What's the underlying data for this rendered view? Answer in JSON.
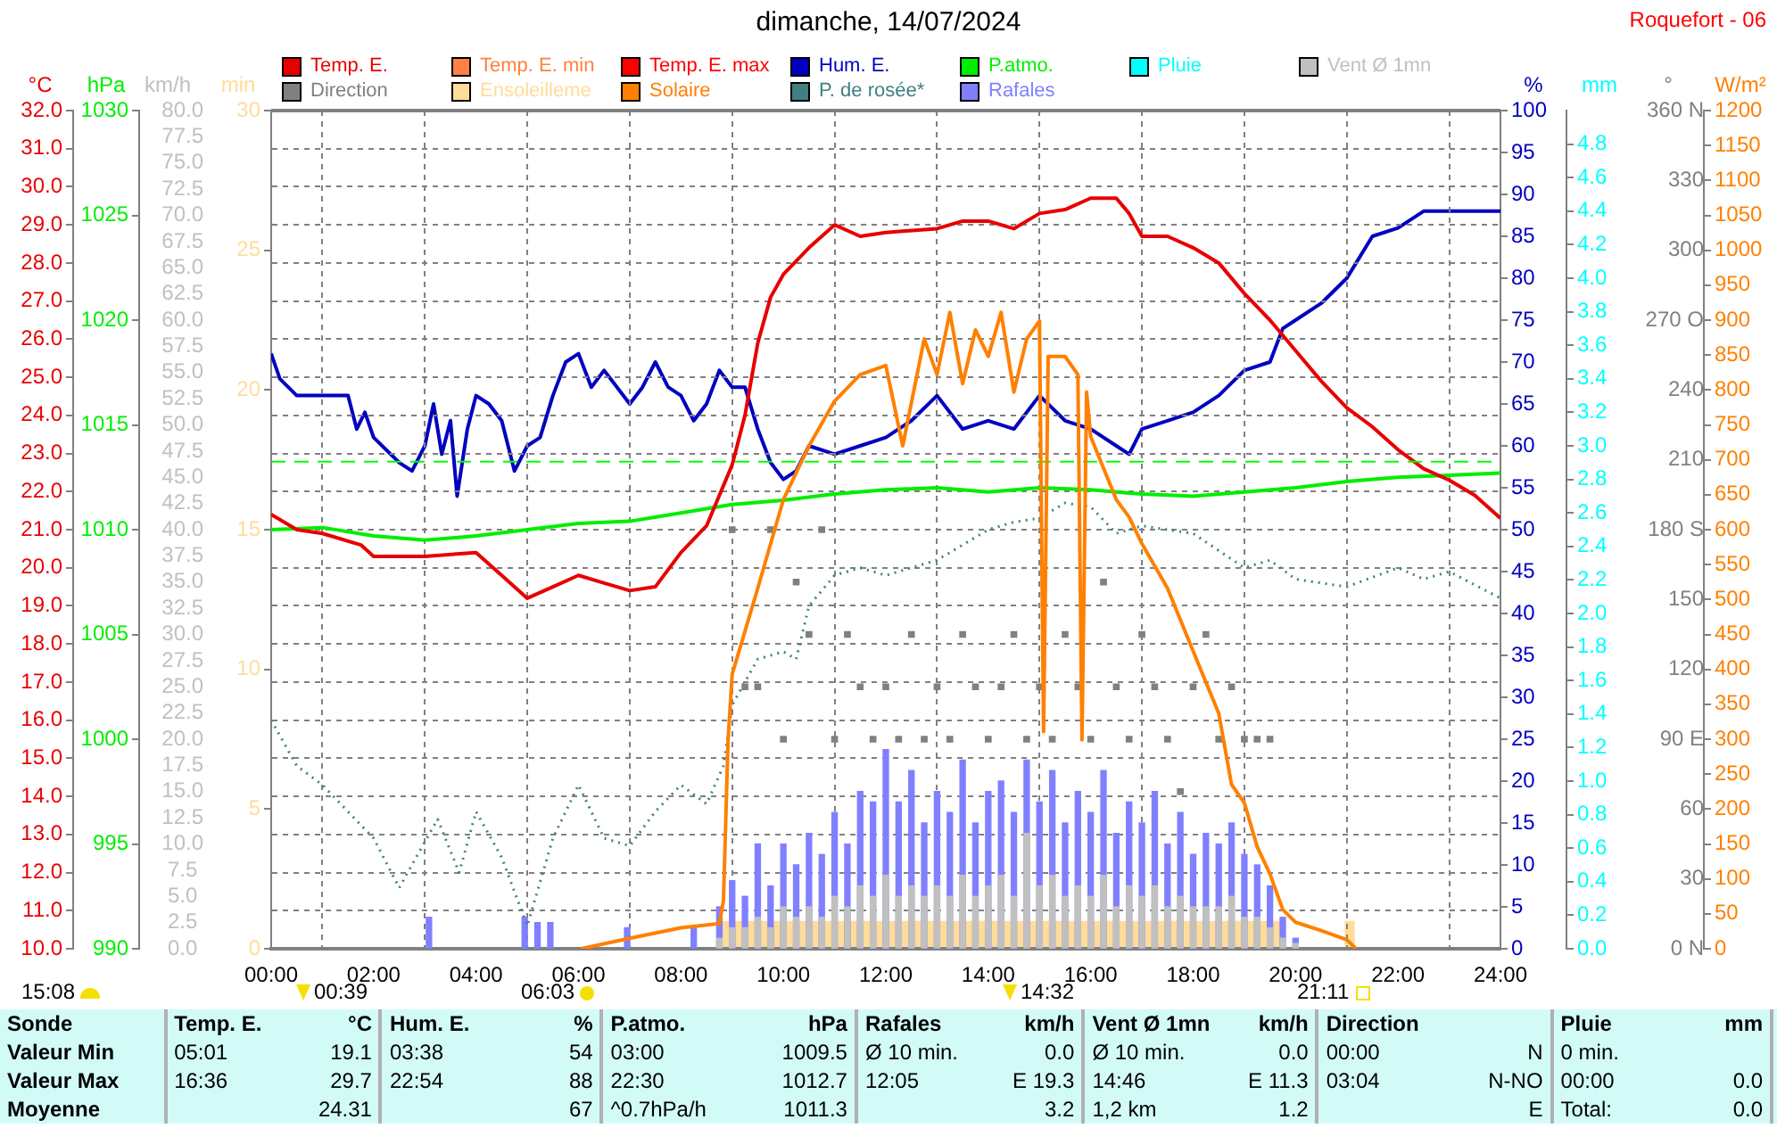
{
  "chart_data": [
    {
      "type": "line",
      "title": "dimanche, 14/07/2024",
      "legend": "top",
      "grid": true,
      "xlim": [
        0,
        24
      ],
      "xticks": [
        {
          "value": 0,
          "label": "00:00"
        },
        {
          "value": 2,
          "label": "02:00"
        },
        {
          "value": 4,
          "label": "04:00"
        },
        {
          "value": 6,
          "label": "06:00"
        },
        {
          "value": 8,
          "label": "08:00"
        },
        {
          "value": 10,
          "label": "10:00"
        },
        {
          "value": 12,
          "label": "12:00"
        },
        {
          "value": 14,
          "label": "14:00"
        },
        {
          "value": 16,
          "label": "16:00"
        },
        {
          "value": 18,
          "label": "18:00"
        },
        {
          "value": 20,
          "label": "20:00"
        },
        {
          "value": 22,
          "label": "22:00"
        },
        {
          "value": 24,
          "label": "24:00"
        }
      ],
      "ylabel": "°C",
      "ylim": [
        10,
        32
      ],
      "yticks": [
        {
          "value": 10,
          "label": "10.0"
        },
        {
          "value": 11,
          "label": "11.0"
        },
        {
          "value": 12,
          "label": "12.0"
        },
        {
          "value": 13,
          "label": "13.0"
        },
        {
          "value": 14,
          "label": "14.0"
        },
        {
          "value": 15,
          "label": "15.0"
        },
        {
          "value": 16,
          "label": "16.0"
        },
        {
          "value": 17,
          "label": "17.0"
        },
        {
          "value": 18,
          "label": "18.0"
        },
        {
          "value": 19,
          "label": "19.0"
        },
        {
          "value": 20,
          "label": "20.0"
        },
        {
          "value": 21,
          "label": "21.0"
        },
        {
          "value": 22,
          "label": "22.0"
        },
        {
          "value": 23,
          "label": "23.0"
        },
        {
          "value": 24,
          "label": "24.0"
        },
        {
          "value": 25,
          "label": "25.0"
        },
        {
          "value": 26,
          "label": "26.0"
        },
        {
          "value": 27,
          "label": "27.0"
        },
        {
          "value": 28,
          "label": "28.0"
        },
        {
          "value": 29,
          "label": "29.0"
        },
        {
          "value": 30,
          "label": "30.0"
        },
        {
          "value": 31,
          "label": "31.0"
        },
        {
          "value": 32,
          "label": "32.0"
        }
      ],
      "y2label": "hPa",
      "y2lim": [
        990,
        1030
      ],
      "y2ticks": [
        990,
        995,
        1000,
        1005,
        1010,
        1015,
        1020,
        1025,
        1030
      ],
      "y3label": "km/h",
      "y3lim": [
        0,
        80
      ],
      "y3ticks": [
        {
          "value": 0,
          "label": "0.0"
        },
        {
          "value": 2.5,
          "label": "2.5"
        },
        {
          "value": 5,
          "label": "5.0"
        },
        {
          "value": 7.5,
          "label": "7.5"
        },
        {
          "value": 10,
          "label": "10.0"
        },
        {
          "value": 12.5,
          "label": "12.5"
        },
        {
          "value": 15,
          "label": "15.0"
        },
        {
          "value": 17.5,
          "label": "17.5"
        },
        {
          "value": 20,
          "label": "20.0"
        },
        {
          "value": 22.5,
          "label": "22.5"
        },
        {
          "value": 25,
          "label": "25.0"
        },
        {
          "value": 27.5,
          "label": "27.5"
        },
        {
          "value": 30,
          "label": "30.0"
        },
        {
          "value": 32.5,
          "label": "32.5"
        },
        {
          "value": 35,
          "label": "35.0"
        },
        {
          "value": 37.5,
          "label": "37.5"
        },
        {
          "value": 40,
          "label": "40.0"
        },
        {
          "value": 42.5,
          "label": "42.5"
        },
        {
          "value": 45,
          "label": "45.0"
        },
        {
          "value": 47.5,
          "label": "47.5"
        },
        {
          "value": 50,
          "label": "50.0"
        },
        {
          "value": 52.5,
          "label": "52.5"
        },
        {
          "value": 55,
          "label": "55.0"
        },
        {
          "value": 57.5,
          "label": "57.5"
        },
        {
          "value": 60,
          "label": "60.0"
        },
        {
          "value": 62.5,
          "label": "62.5"
        },
        {
          "value": 65,
          "label": "65.0"
        },
        {
          "value": 67.5,
          "label": "67.5"
        },
        {
          "value": 70,
          "label": "70.0"
        },
        {
          "value": 72.5,
          "label": "72.5"
        },
        {
          "value": 75,
          "label": "75.0"
        },
        {
          "value": 77.5,
          "label": "77.5"
        },
        {
          "value": 80,
          "label": "80.0"
        }
      ],
      "ref_lines": [
        {
          "axis": "y2",
          "value": 1013.25,
          "color": "#00ff00",
          "line_style": "dashed"
        }
      ],
      "series": [
        {
          "name": "Temp. E.",
          "color": "#e80000",
          "x": [
            0,
            0.5,
            1,
            1.75,
            2,
            3,
            4,
            4.5,
            5,
            5.5,
            6,
            6.5,
            7,
            7.5,
            8,
            8.5,
            9,
            9.25,
            9.5,
            9.75,
            10,
            10.5,
            11,
            11.5,
            12,
            13,
            13.5,
            14,
            14.5,
            15,
            15.5,
            16,
            16.5,
            16.75,
            17,
            17.5,
            18,
            18.5,
            19,
            19.5,
            20,
            20.5,
            21,
            21.5,
            22,
            22.5,
            23,
            23.5,
            24
          ],
          "values": [
            21.4,
            21.0,
            20.9,
            20.6,
            20.3,
            20.3,
            20.4,
            19.8,
            19.2,
            19.5,
            19.8,
            19.6,
            19.4,
            19.5,
            20.4,
            21.1,
            22.7,
            24.0,
            25.9,
            27.1,
            27.7,
            28.4,
            29.0,
            28.7,
            28.8,
            28.9,
            29.1,
            29.1,
            28.9,
            29.3,
            29.4,
            29.7,
            29.7,
            29.3,
            28.7,
            28.7,
            28.4,
            28.0,
            27.2,
            26.5,
            25.7,
            24.9,
            24.2,
            23.7,
            23.1,
            22.6,
            22.3,
            21.9,
            21.3
          ]
        },
        {
          "name": "Temp. E. min",
          "color": "#ff8040"
        },
        {
          "name": "Temp. E. max",
          "color": "#ff0000"
        },
        {
          "name": "P.atmo.",
          "color": "#00ee00",
          "axis": "y2",
          "x": [
            0,
            1,
            2,
            3,
            4,
            5,
            6,
            7,
            8,
            9,
            10,
            11,
            12,
            13,
            14,
            15,
            16,
            17,
            18,
            19,
            20,
            21,
            22,
            23,
            24
          ],
          "values": [
            1010.0,
            1010.1,
            1009.7,
            1009.5,
            1009.7,
            1010.0,
            1010.3,
            1010.4,
            1010.8,
            1011.2,
            1011.4,
            1011.7,
            1011.9,
            1012.0,
            1011.8,
            1012.0,
            1011.9,
            1011.7,
            1011.6,
            1011.8,
            1012.0,
            1012.3,
            1012.5,
            1012.6,
            1012.7
          ]
        },
        {
          "name": "Vent Ø 1mn",
          "color": "#c0c0c0",
          "type": "bar",
          "axis": "y3",
          "x": [
            8.75,
            9,
            9.25,
            9.5,
            9.75,
            10,
            10.25,
            10.5,
            10.75,
            11,
            11.25,
            11.5,
            11.75,
            12,
            12.25,
            12.5,
            12.75,
            13,
            13.25,
            13.5,
            13.75,
            14,
            14.25,
            14.5,
            14.75,
            15,
            15.25,
            15.5,
            15.75,
            16,
            16.25,
            16.5,
            16.75,
            17,
            17.25,
            17.5,
            17.75,
            18,
            18.25,
            18.5,
            18.75,
            19,
            19.25,
            19.5,
            19.75,
            20
          ],
          "values": [
            1,
            2,
            2,
            3,
            2,
            4,
            3,
            4,
            3,
            5,
            4,
            6,
            5,
            7,
            5,
            6,
            5,
            6,
            5,
            7,
            5,
            6,
            7,
            5,
            11,
            6,
            7,
            5,
            6,
            5,
            7,
            4,
            6,
            5,
            6,
            4,
            5,
            4,
            4,
            4,
            5,
            3,
            3,
            2,
            1,
            0.5
          ]
        },
        {
          "name": "P. de rosée*",
          "color": "#408080",
          "line_style": "dotted",
          "x": [
            0,
            0.5,
            1,
            1.5,
            2,
            2.5,
            2.83,
            3.25,
            3.67,
            4,
            4.5,
            5,
            5.5,
            6,
            6.5,
            7,
            7.5,
            8,
            8.5,
            8.83,
            9,
            9.5,
            10,
            10.25,
            10.5,
            11,
            11.5,
            12,
            13,
            14,
            14.5,
            15,
            15.5,
            16,
            16.5,
            17,
            18,
            19,
            19.5,
            20,
            21,
            22,
            22.5,
            23,
            24
          ],
          "values": [
            16.0,
            14.8,
            14.3,
            13.6,
            12.9,
            11.6,
            12.4,
            13.4,
            12.0,
            13.6,
            12.4,
            10.6,
            12.9,
            14.3,
            12.9,
            12.7,
            13.6,
            14.3,
            13.8,
            14.8,
            16.4,
            17.6,
            17.8,
            17.6,
            19.0,
            19.8,
            20.0,
            19.8,
            20.2,
            21.0,
            21.2,
            21.3,
            21.7,
            21.6,
            20.9,
            21.1,
            20.9,
            20.0,
            20.2,
            19.7,
            19.5,
            20.0,
            19.7,
            19.9,
            19.2
          ]
        },
        {
          "name": "Rafales",
          "color": "#8080ff",
          "type": "bar",
          "axis": "y3",
          "x": [
            3.08,
            4.95,
            5.2,
            5.45,
            6.95,
            8.25,
            8.75,
            9,
            9.25,
            9.5,
            9.75,
            10,
            10.25,
            10.5,
            10.75,
            11,
            11.25,
            11.5,
            11.75,
            12,
            12.25,
            12.5,
            12.75,
            13,
            13.25,
            13.5,
            13.75,
            14,
            14.25,
            14.5,
            14.75,
            15,
            15.25,
            15.5,
            15.75,
            16,
            16.25,
            16.5,
            16.75,
            17,
            17.25,
            17.5,
            17.75,
            18,
            18.25,
            18.5,
            18.75,
            19,
            19.25,
            19.5,
            19.75,
            20
          ],
          "values": [
            3,
            3,
            2.5,
            2.5,
            2,
            2,
            4,
            6.5,
            5,
            10,
            6,
            10,
            8,
            11,
            9,
            13,
            10,
            15,
            14,
            19,
            14,
            17,
            12,
            15,
            13,
            18,
            12,
            15,
            16,
            13,
            18,
            14,
            17,
            12,
            15,
            13,
            17,
            11,
            14,
            12,
            15,
            10,
            13,
            9,
            11,
            10,
            12,
            9,
            8,
            6,
            3,
            1
          ]
        }
      ],
      "annotations": [
        "Roquefort - 06",
        "15:08",
        "00:39",
        "06:03",
        "14:32",
        "21:11",
        "Sonde\tTemp. E.\t°C\tHum. E.\t%\tP.atmo.\thPa\tRafales\tkm/h\tVent Ø 1mn\tkm/h\tDirection\t\tPluie\tmm",
        "Valeur Min\t05:01\t19.1\t03:38\t54\t03:00\t1009.5\tØ 10 min.\t0.0\tØ 10 min.\t0.0\t00:00\tN\t0 min.\t",
        "Valeur Max\t16:36\t29.7\t22:54\t88\t22:30\t1012.7\t12:05\tE 19.3\t14:46\tE 11.3\t03:04\tN-NO\t00:00\t0.0",
        "Moyenne\t\t24.31\t\t67\t^0.7hPa/h\t1011.3\t\t3.2\t1,2 km\t1.2\t\tE\tTotal:\t0.0"
      ]
    },
    {
      "type": "line",
      "legend": "top",
      "tick_labels": "y",
      "xlim": [
        0,
        24
      ],
      "ylabel": "min",
      "ylim": [
        0,
        30
      ],
      "yticks": [
        0,
        5,
        10,
        15,
        20,
        25,
        30
      ],
      "y2label": "%",
      "y2lim": [
        0,
        100
      ],
      "y2ticks": [
        0,
        5,
        10,
        15,
        20,
        25,
        30,
        35,
        40,
        45,
        50,
        55,
        60,
        65,
        70,
        75,
        80,
        85,
        90,
        95,
        100
      ],
      "y3label": "mm",
      "y3lim": [
        0,
        5
      ],
      "y3ticks": [
        {
          "value": 0,
          "label": "0.0"
        },
        0.2,
        0.4,
        0.6,
        0.8,
        {
          "value": 1,
          "label": "1.0"
        },
        1.2,
        1.4,
        1.6,
        1.8,
        {
          "value": 2,
          "label": "2.0"
        },
        2.2,
        2.4,
        2.6,
        2.8,
        {
          "value": 3,
          "label": "3.0"
        },
        3.2,
        3.4,
        3.6,
        3.8,
        {
          "value": 4,
          "label": "4.0"
        },
        4.2,
        4.4,
        4.6,
        4.8
      ],
      "series": [
        {
          "name": "Hum. E.",
          "color": "#0000c0",
          "axis": "y2",
          "x": [
            0,
            0.17,
            0.5,
            1,
            1.5,
            1.67,
            1.83,
            2,
            2.5,
            2.75,
            3,
            3.17,
            3.33,
            3.5,
            3.63,
            3.83,
            4,
            4.25,
            4.5,
            4.75,
            5,
            5.25,
            5.5,
            5.75,
            6,
            6.25,
            6.5,
            7,
            7.25,
            7.5,
            7.75,
            8,
            8.25,
            8.5,
            8.75,
            9,
            9.25,
            9.5,
            9.75,
            10,
            10.25,
            10.5,
            11,
            11.5,
            12,
            12.5,
            13,
            13.5,
            14,
            14.5,
            15,
            15.5,
            16,
            16.5,
            16.75,
            17,
            17.5,
            18,
            18.5,
            19,
            19.5,
            19.75,
            20,
            20.5,
            21,
            21.5,
            22,
            22.5,
            23,
            24
          ],
          "values": [
            71,
            68,
            66,
            66,
            66,
            62,
            64,
            61,
            58,
            57,
            60,
            65,
            59,
            63,
            54,
            62,
            66,
            65,
            63,
            57,
            60,
            61,
            66,
            70,
            71,
            67,
            69,
            65,
            67,
            70,
            67,
            66,
            63,
            65,
            69,
            67,
            67,
            62,
            58,
            56,
            57,
            60,
            59,
            60,
            61,
            63,
            66,
            62,
            63,
            62,
            66,
            63,
            62,
            60,
            59,
            62,
            63,
            64,
            66,
            69,
            70,
            74,
            75,
            77,
            80,
            85,
            86,
            88,
            88,
            88
          ]
        },
        {
          "name": "Pluie",
          "color": "#00ffff",
          "axis": "y3"
        },
        {
          "name": "Ensoleilleme",
          "color": "#ffdc9a",
          "type": "area",
          "x": [
            8.75,
            8.76,
            19.8,
            19.81,
            20.95,
            20.96,
            21.15,
            21.16
          ],
          "values": [
            0,
            1,
            1,
            0,
            0,
            1,
            1,
            0
          ]
        }
      ]
    },
    {
      "type": "line",
      "legend": "top",
      "tick_labels": "y",
      "xlim": [
        0,
        24
      ],
      "ylabel": "°",
      "ylim": [
        0,
        360
      ],
      "yticks": [
        {
          "value": 0,
          "label": "0 N"
        },
        30,
        60,
        {
          "value": 90,
          "label": "90 E"
        },
        120,
        150,
        {
          "value": 180,
          "label": "180 S"
        },
        210,
        240,
        {
          "value": 270,
          "label": "270 O"
        },
        300,
        330,
        {
          "value": 360,
          "label": "360 N"
        }
      ],
      "y2label": "W/m²",
      "y2lim": [
        0,
        1200
      ],
      "y2ticks": [
        0,
        50,
        100,
        150,
        200,
        250,
        300,
        350,
        400,
        450,
        500,
        550,
        600,
        650,
        700,
        750,
        800,
        850,
        900,
        950,
        1000,
        1050,
        1100,
        1150,
        1200
      ],
      "series": [
        {
          "name": "Direction",
          "color": "#808080",
          "type": "scatter",
          "marker": "square",
          "x": [
            9,
            9.25,
            9.5,
            9.75,
            10,
            10.25,
            10.5,
            10.75,
            11,
            11.25,
            11.5,
            11.75,
            12,
            12.25,
            12.5,
            12.75,
            13,
            13.25,
            13.5,
            13.75,
            14,
            14.25,
            14.5,
            14.75,
            15,
            15.25,
            15.5,
            15.75,
            16,
            16.25,
            16.5,
            16.75,
            17,
            17.25,
            17.5,
            17.75,
            18,
            18.25,
            18.5,
            18.75,
            19,
            19.25,
            19.5
          ],
          "values": [
            180,
            112.5,
            112.5,
            180,
            90,
            157.5,
            135,
            180,
            90,
            135,
            112.5,
            90,
            112.5,
            90,
            135,
            90,
            112.5,
            90,
            135,
            112.5,
            90,
            112.5,
            135,
            90,
            112.5,
            90,
            135,
            112.5,
            90,
            157.5,
            112.5,
            90,
            135,
            112.5,
            90,
            67.5,
            112.5,
            135,
            90,
            112.5,
            90,
            90,
            90
          ]
        },
        {
          "name": "Solaire",
          "color": "#ff8000",
          "axis": "y2",
          "x": [
            6.05,
            7,
            8,
            8.75,
            8.83,
            8.92,
            9,
            9.5,
            10,
            10.5,
            11,
            11.5,
            12,
            12.33,
            12.75,
            13,
            13.25,
            13.5,
            13.75,
            14,
            14.25,
            14.5,
            14.75,
            15,
            15.08,
            15.17,
            15.5,
            15.75,
            15.83,
            15.92,
            16,
            16.5,
            16.75,
            17,
            17.5,
            18,
            18.5,
            18.75,
            19,
            19.25,
            19.5,
            19.75,
            20,
            20.5,
            21,
            21.18
          ],
          "values": [
            0,
            15,
            30,
            36,
            69,
            299,
            393,
            516,
            643,
            720,
            784,
            822,
            835,
            720,
            873,
            822,
            911,
            809,
            886,
            848,
            911,
            797,
            873,
            899,
            311,
            848,
            848,
            822,
            299,
            797,
            733,
            643,
            618,
            580,
            516,
            426,
            337,
            235,
            209,
            146,
            107,
            56,
            38,
            26,
            13,
            0
          ]
        }
      ]
    }
  ]
}
